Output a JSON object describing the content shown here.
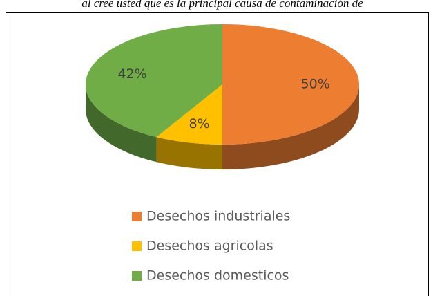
{
  "chart_data": {
    "type": "pie",
    "title": "al cree usted que es la principal causa de contaminación de",
    "categories": [
      "Desechos industriales",
      "Desechos agricolas",
      "Desechos domesticos"
    ],
    "values": [
      50,
      8,
      42
    ],
    "value_labels": [
      "50%",
      "8%",
      "42%"
    ],
    "colors": [
      "#ed7d31",
      "#ffc000",
      "#70ad47"
    ],
    "legend": "bottom"
  }
}
